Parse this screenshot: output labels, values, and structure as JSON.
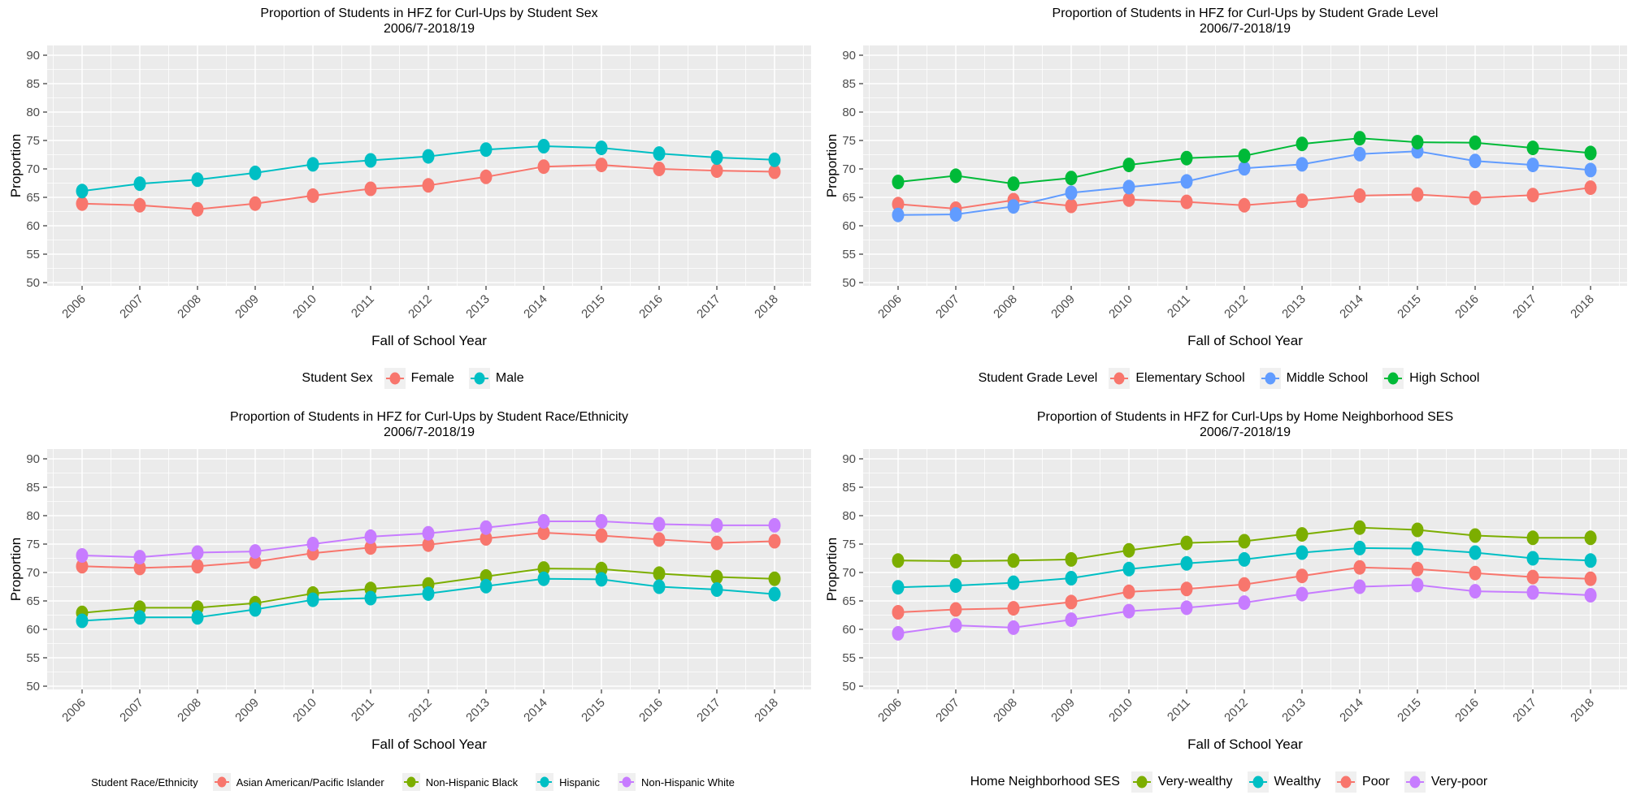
{
  "colors": {
    "panel_bg": "#EBEBEB",
    "grid": "#FFFFFF",
    "tick_label": "#4D4D4D",
    "tick_mark": "#333333",
    "text": "#000000",
    "legend_key_bg": "#F0F0F0"
  },
  "chart_data": [
    {
      "type": "line",
      "title": "Proportion of Students in HFZ for Curl-Ups by Student Sex",
      "subtitle": "2006/7-2018/19",
      "xlabel": "Fall of School Year",
      "ylabel": "Proportion",
      "x": [
        2006,
        2007,
        2008,
        2009,
        2010,
        2011,
        2012,
        2013,
        2014,
        2015,
        2016,
        2017,
        2018
      ],
      "ylim": [
        50,
        90
      ],
      "y_ticks": [
        90,
        85,
        80,
        75,
        70,
        65,
        60,
        55,
        50
      ],
      "grid": true,
      "legend_position": "bottom",
      "legend_title": "Student Sex",
      "series": [
        {
          "name": "Female",
          "color": "#F8766D",
          "values": [
            63.9,
            63.6,
            62.9,
            63.9,
            65.3,
            66.5,
            67.1,
            68.6,
            70.4,
            70.7,
            70.0,
            69.7,
            69.5
          ]
        },
        {
          "name": "Male",
          "color": "#00BFC4",
          "values": [
            66.1,
            67.4,
            68.1,
            69.3,
            70.8,
            71.5,
            72.2,
            73.4,
            74.0,
            73.7,
            72.7,
            72.0,
            71.6
          ]
        }
      ]
    },
    {
      "type": "line",
      "title": "Proportion of Students in HFZ for Curl-Ups by Student Grade Level",
      "subtitle": "2006/7-2018/19",
      "xlabel": "Fall of School Year",
      "ylabel": "Proportion",
      "x": [
        2006,
        2007,
        2008,
        2009,
        2010,
        2011,
        2012,
        2013,
        2014,
        2015,
        2016,
        2017,
        2018
      ],
      "ylim": [
        50,
        90
      ],
      "y_ticks": [
        90,
        85,
        80,
        75,
        70,
        65,
        60,
        55,
        50
      ],
      "grid": true,
      "legend_position": "bottom",
      "legend_title": "Student Grade Level",
      "series": [
        {
          "name": "Elementary School",
          "color": "#F8766D",
          "values": [
            63.8,
            63.0,
            64.5,
            63.5,
            64.6,
            64.2,
            63.6,
            64.4,
            65.3,
            65.5,
            64.9,
            65.4,
            66.7
          ]
        },
        {
          "name": "Middle School",
          "color": "#619CFF",
          "values": [
            61.9,
            62.0,
            63.4,
            65.8,
            66.8,
            67.8,
            70.1,
            70.8,
            72.6,
            73.1,
            71.4,
            70.7,
            69.8
          ]
        },
        {
          "name": "High School",
          "color": "#00BA38",
          "values": [
            67.7,
            68.8,
            67.4,
            68.4,
            70.7,
            71.9,
            72.3,
            74.4,
            75.4,
            74.7,
            74.6,
            73.7,
            72.8
          ]
        }
      ]
    },
    {
      "type": "line",
      "title": "Proportion of Students in HFZ for Curl-Ups by Student Race/Ethnicity",
      "subtitle": "2006/7-2018/19",
      "xlabel": "Fall of School Year",
      "ylabel": "Proportion",
      "x": [
        2006,
        2007,
        2008,
        2009,
        2010,
        2011,
        2012,
        2013,
        2014,
        2015,
        2016,
        2017,
        2018
      ],
      "ylim": [
        50,
        90
      ],
      "y_ticks": [
        90,
        85,
        80,
        75,
        70,
        65,
        60,
        55,
        50
      ],
      "grid": true,
      "legend_position": "bottom",
      "legend_title": "Student Race/Ethnicity",
      "series": [
        {
          "name": "Asian American/Pacific Islander",
          "color": "#F8766D",
          "values": [
            71.1,
            70.8,
            71.1,
            71.9,
            73.4,
            74.4,
            74.9,
            76.0,
            77.0,
            76.5,
            75.8,
            75.2,
            75.5
          ]
        },
        {
          "name": "Non-Hispanic Black",
          "color": "#7CAE00",
          "values": [
            62.9,
            63.8,
            63.8,
            64.6,
            66.3,
            67.1,
            67.9,
            69.3,
            70.7,
            70.6,
            69.8,
            69.2,
            68.9
          ]
        },
        {
          "name": "Hispanic",
          "color": "#00BFC4",
          "values": [
            61.5,
            62.1,
            62.1,
            63.5,
            65.2,
            65.5,
            66.3,
            67.6,
            68.9,
            68.8,
            67.5,
            67.0,
            66.2
          ]
        },
        {
          "name": "Non-Hispanic White",
          "color": "#C77CFF",
          "values": [
            73.0,
            72.7,
            73.5,
            73.7,
            75.0,
            76.3,
            76.9,
            77.9,
            79.0,
            79.0,
            78.5,
            78.3,
            78.3
          ]
        }
      ]
    },
    {
      "type": "line",
      "title": "Proportion of Students in HFZ for Curl-Ups by Home Neighborhood SES",
      "subtitle": "2006/7-2018/19",
      "xlabel": "Fall of School Year",
      "ylabel": "Proportion",
      "x": [
        2006,
        2007,
        2008,
        2009,
        2010,
        2011,
        2012,
        2013,
        2014,
        2015,
        2016,
        2017,
        2018
      ],
      "ylim": [
        50,
        90
      ],
      "y_ticks": [
        90,
        85,
        80,
        75,
        70,
        65,
        60,
        55,
        50
      ],
      "grid": true,
      "legend_position": "bottom",
      "legend_title": "Home Neighborhood SES",
      "series": [
        {
          "name": "Very-wealthy",
          "color": "#7CAE00",
          "values": [
            72.1,
            72.0,
            72.1,
            72.3,
            73.9,
            75.2,
            75.5,
            76.7,
            77.9,
            77.5,
            76.5,
            76.1,
            76.1
          ]
        },
        {
          "name": "Wealthy",
          "color": "#00BFC4",
          "values": [
            67.4,
            67.7,
            68.2,
            69.0,
            70.6,
            71.6,
            72.3,
            73.5,
            74.3,
            74.2,
            73.5,
            72.5,
            72.1
          ]
        },
        {
          "name": "Poor",
          "color": "#F8766D",
          "values": [
            63.0,
            63.5,
            63.7,
            64.8,
            66.6,
            67.1,
            67.9,
            69.4,
            70.9,
            70.6,
            69.9,
            69.2,
            68.9
          ]
        },
        {
          "name": "Very-poor",
          "color": "#C77CFF",
          "values": [
            59.3,
            60.7,
            60.3,
            61.7,
            63.2,
            63.8,
            64.7,
            66.2,
            67.5,
            67.8,
            66.7,
            66.5,
            66.0
          ]
        }
      ]
    }
  ]
}
